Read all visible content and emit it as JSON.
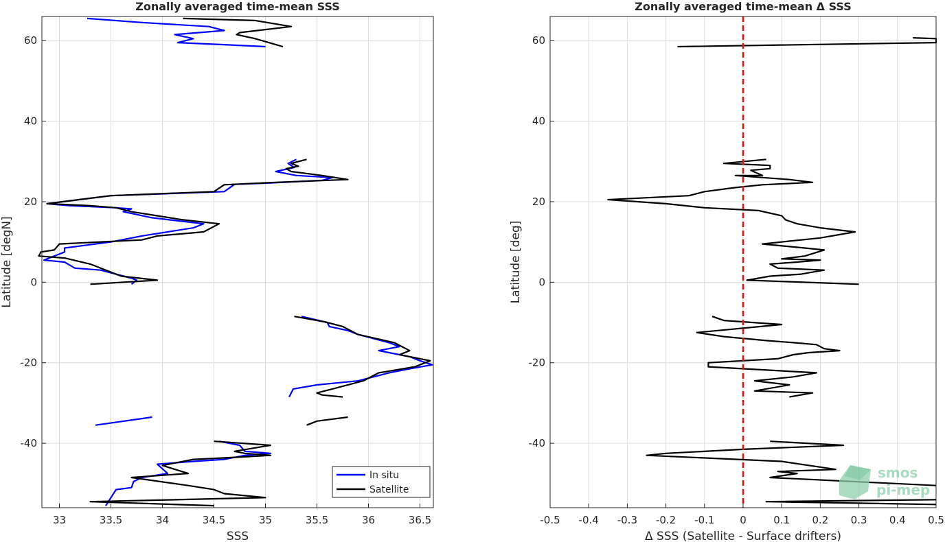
{
  "chart_data": [
    {
      "type": "line",
      "title": "Zonally averaged time-mean SSS",
      "xlabel": "SSS",
      "ylabel": "Latitude [degN]",
      "xlim": [
        32.83,
        36.63
      ],
      "ylim": [
        -56,
        66
      ],
      "xticks": [
        33,
        33.5,
        34,
        34.5,
        35,
        35.5,
        36,
        36.5
      ],
      "yticks": [
        -40,
        -20,
        0,
        20,
        40,
        60
      ],
      "grid": true,
      "legend": "bottom-right",
      "series": [
        {
          "name": "In situ",
          "color": "#0000ff",
          "segments": [
            [
              [
                33.27,
                65.5
              ],
              [
                33.8,
                64.5
              ],
              [
                34.45,
                63.5
              ],
              [
                34.6,
                62.5
              ],
              [
                34.12,
                61.5
              ],
              [
                34.3,
                60.5
              ],
              [
                34.15,
                59.5
              ],
              [
                34.6,
                59.0
              ],
              [
                35.0,
                58.5
              ]
            ],
            [
              [
                35.3,
                30.5
              ],
              [
                35.22,
                29.5
              ],
              [
                35.28,
                28.5
              ],
              [
                35.1,
                27.5
              ],
              [
                35.3,
                26.5
              ],
              [
                35.65,
                26.0
              ],
              [
                35.55,
                25.3
              ],
              [
                35.0,
                24.6
              ],
              [
                34.7,
                24.3
              ],
              [
                34.6,
                22.5
              ],
              [
                33.5,
                21.5
              ],
              [
                32.88,
                19.5
              ],
              [
                33.1,
                19.0
              ],
              [
                33.55,
                18.5
              ],
              [
                33.7,
                18.2
              ],
              [
                33.62,
                17.5
              ],
              [
                33.9,
                16.0
              ],
              [
                34.4,
                14.5
              ],
              [
                34.3,
                13.5
              ],
              [
                33.8,
                11.5
              ],
              [
                33.5,
                10.0
              ],
              [
                33.05,
                8.5
              ],
              [
                33.05,
                7.5
              ],
              [
                32.85,
                5.5
              ],
              [
                33.05,
                5.0
              ],
              [
                33.15,
                3.5
              ],
              [
                33.4,
                3.0
              ],
              [
                33.7,
                1.0
              ],
              [
                33.75,
                0.5
              ],
              [
                33.7,
                -0.5
              ]
            ],
            [
              [
                35.35,
                -8.5
              ],
              [
                35.6,
                -10.0
              ],
              [
                35.62,
                -11.0
              ],
              [
                35.8,
                -12.0
              ],
              [
                35.9,
                -13.0
              ],
              [
                36.2,
                -15.0
              ],
              [
                36.3,
                -16.0
              ],
              [
                36.1,
                -17.0
              ],
              [
                36.2,
                -17.5
              ],
              [
                36.4,
                -18.5
              ],
              [
                36.5,
                -19.5
              ],
              [
                36.62,
                -20.5
              ],
              [
                36.4,
                -21.5
              ],
              [
                36.2,
                -22.5
              ],
              [
                35.9,
                -24.5
              ],
              [
                35.5,
                -25.5
              ],
              [
                35.27,
                -26.5
              ],
              [
                35.25,
                -27.5
              ],
              [
                35.23,
                -28.5
              ]
            ],
            [
              [
                33.35,
                -35.5
              ],
              [
                33.9,
                -33.5
              ]
            ],
            [
              [
                34.55,
                -39.5
              ],
              [
                34.75,
                -40.5
              ],
              [
                34.8,
                -42.0
              ],
              [
                35.05,
                -42.5
              ],
              [
                34.8,
                -43.0
              ],
              [
                34.6,
                -44.0
              ],
              [
                34.3,
                -44.5
              ],
              [
                33.95,
                -45.2
              ],
              [
                34.05,
                -47.5
              ],
              [
                33.8,
                -48.5
              ],
              [
                33.72,
                -49.5
              ],
              [
                33.7,
                -51.0
              ],
              [
                33.55,
                -51.5
              ],
              [
                33.5,
                -53.5
              ],
              [
                33.45,
                -55.5
              ]
            ]
          ]
        },
        {
          "name": "Satellite",
          "color": "#000000",
          "segments": [
            [
              [
                34.2,
                65.5
              ],
              [
                34.9,
                65.0
              ],
              [
                35.25,
                63.5
              ],
              [
                34.75,
                62.0
              ],
              [
                34.72,
                61.5
              ],
              [
                34.9,
                60.5
              ],
              [
                35.17,
                58.5
              ]
            ],
            [
              [
                35.4,
                30.5
              ],
              [
                35.25,
                29.5
              ],
              [
                35.32,
                28.8
              ],
              [
                35.2,
                28.2
              ],
              [
                35.25,
                27.5
              ],
              [
                35.55,
                26.5
              ],
              [
                35.8,
                25.5
              ],
              [
                35.1,
                24.8
              ],
              [
                34.6,
                24.2
              ],
              [
                34.5,
                22.5
              ],
              [
                33.5,
                21.5
              ],
              [
                32.88,
                19.5
              ],
              [
                33.3,
                19.0
              ],
              [
                33.55,
                18.5
              ],
              [
                33.7,
                17.5
              ],
              [
                33.95,
                16.5
              ],
              [
                34.2,
                15.5
              ],
              [
                34.55,
                14.5
              ],
              [
                34.4,
                12.5
              ],
              [
                33.95,
                11.5
              ],
              [
                33.8,
                10.5
              ],
              [
                33.0,
                9.5
              ],
              [
                32.95,
                8.0
              ],
              [
                32.82,
                7.5
              ],
              [
                32.8,
                6.5
              ],
              [
                33.05,
                6.0
              ],
              [
                33.3,
                4.5
              ],
              [
                33.5,
                2.5
              ],
              [
                33.6,
                1.5
              ],
              [
                33.95,
                0.5
              ],
              [
                33.3,
                -0.5
              ]
            ],
            [
              [
                35.28,
                -8.5
              ],
              [
                35.5,
                -9.5
              ],
              [
                35.6,
                -10.0
              ],
              [
                35.75,
                -11.0
              ],
              [
                35.9,
                -13.0
              ],
              [
                36.25,
                -15.0
              ],
              [
                36.4,
                -17.0
              ],
              [
                36.3,
                -18.0
              ],
              [
                36.6,
                -19.5
              ],
              [
                36.45,
                -21.0
              ],
              [
                36.1,
                -22.5
              ],
              [
                35.95,
                -24.5
              ],
              [
                35.65,
                -26.5
              ],
              [
                35.5,
                -27.5
              ],
              [
                35.55,
                -28.0
              ],
              [
                35.75,
                -28.5
              ]
            ],
            [
              [
                35.4,
                -35.5
              ],
              [
                35.5,
                -34.5
              ],
              [
                35.8,
                -33.5
              ]
            ],
            [
              [
                34.5,
                -39.5
              ],
              [
                35.05,
                -40.5
              ],
              [
                34.7,
                -42.0
              ],
              [
                34.8,
                -42.5
              ],
              [
                35.05,
                -43.0
              ],
              [
                34.7,
                -43.5
              ],
              [
                34.3,
                -44.0
              ],
              [
                34.0,
                -45.5
              ],
              [
                34.25,
                -47.5
              ],
              [
                33.7,
                -48.5
              ],
              [
                34.25,
                -50.5
              ],
              [
                34.5,
                -51.5
              ],
              [
                34.6,
                -52.5
              ],
              [
                35.0,
                -53.5
              ],
              [
                33.3,
                -54.5
              ],
              [
                34.5,
                -55.5
              ]
            ]
          ]
        }
      ]
    },
    {
      "type": "line",
      "title": "Zonally averaged time-mean Δ SSS",
      "xlabel": "Δ SSS (Satellite - Surface drifters)",
      "ylabel": "Latitude [deg]",
      "xlim": [
        -0.5,
        0.5
      ],
      "ylim": [
        -56,
        66
      ],
      "xticks": [
        -0.5,
        -0.4,
        -0.3,
        -0.2,
        -0.1,
        0,
        0.1,
        0.2,
        0.3,
        0.4,
        0.5
      ],
      "yticks": [
        -40,
        -20,
        0,
        20,
        40,
        60
      ],
      "grid": true,
      "zero_line": {
        "x": 0,
        "color": "#ee1111",
        "style": "dashed"
      },
      "series": [
        {
          "name": "",
          "color": "#000000",
          "segments": [
            [
              [
                0.44,
                60.7
              ],
              [
                0.5,
                60.5
              ],
              [
                0.5,
                59.5
              ],
              [
                -0.17,
                58.5
              ]
            ],
            [
              [
                0.06,
                30.5
              ],
              [
                -0.05,
                29.5
              ],
              [
                0.07,
                29.0
              ],
              [
                0.07,
                28.2
              ],
              [
                0.02,
                27.8
              ],
              [
                0.05,
                26.5
              ],
              [
                -0.02,
                26.5
              ],
              [
                0.12,
                25.5
              ],
              [
                0.18,
                24.8
              ],
              [
                0.05,
                24.2
              ],
              [
                -0.02,
                23.5
              ],
              [
                -0.1,
                22.5
              ],
              [
                -0.14,
                21.5
              ],
              [
                -0.35,
                20.5
              ],
              [
                -0.2,
                19.5
              ],
              [
                -0.1,
                18.5
              ],
              [
                0.04,
                17.8
              ],
              [
                0.1,
                16.5
              ],
              [
                0.11,
                15.5
              ],
              [
                0.14,
                14.5
              ],
              [
                0.2,
                13.5
              ],
              [
                0.29,
                12.5
              ],
              [
                0.2,
                11.0
              ],
              [
                0.05,
                9.5
              ],
              [
                0.16,
                8.5
              ],
              [
                0.21,
                8.0
              ],
              [
                0.16,
                6.5
              ],
              [
                0.1,
                5.8
              ],
              [
                0.2,
                5.5
              ],
              [
                0.14,
                5.0
              ],
              [
                0.07,
                4.5
              ],
              [
                0.09,
                3.5
              ],
              [
                0.21,
                3.0
              ],
              [
                0.15,
                2.0
              ],
              [
                0.07,
                1.5
              ],
              [
                0.01,
                0.5
              ],
              [
                0.3,
                -0.5
              ]
            ],
            [
              [
                -0.08,
                -8.5
              ],
              [
                -0.05,
                -9.5
              ],
              [
                0.1,
                -10.5
              ],
              [
                -0.12,
                -12.5
              ],
              [
                -0.05,
                -13.5
              ],
              [
                0.06,
                -14.5
              ],
              [
                0.13,
                -15.0
              ],
              [
                0.19,
                -15.5
              ],
              [
                0.21,
                -16.5
              ],
              [
                0.25,
                -17.0
              ],
              [
                0.17,
                -17.5
              ],
              [
                0.13,
                -18.0
              ],
              [
                0.09,
                -19.0
              ],
              [
                -0.09,
                -20.0
              ],
              [
                -0.09,
                -21.0
              ],
              [
                0.19,
                -22.5
              ],
              [
                0.13,
                -23.5
              ],
              [
                0.03,
                -24.5
              ],
              [
                0.12,
                -25.5
              ],
              [
                0.03,
                -27.0
              ],
              [
                0.18,
                -27.5
              ],
              [
                0.12,
                -28.5
              ]
            ],
            [
              [
                0.07,
                -39.5
              ],
              [
                0.26,
                -40.5
              ],
              [
                0.0,
                -41.5
              ],
              [
                -0.2,
                -42.5
              ],
              [
                -0.25,
                -43.0
              ],
              [
                0.1,
                -44.5
              ],
              [
                0.24,
                -46.5
              ],
              [
                0.09,
                -47.0
              ],
              [
                0.14,
                -47.5
              ],
              [
                0.07,
                -48.5
              ],
              [
                0.5,
                -50.5
              ]
            ],
            [
              [
                0.5,
                -54.0
              ],
              [
                0.06,
                -54.5
              ],
              [
                0.5,
                -55.2
              ]
            ]
          ]
        }
      ]
    }
  ],
  "legend": {
    "items": [
      {
        "label": "In situ",
        "color": "#0000ff"
      },
      {
        "label": "Satellite",
        "color": "#000000"
      }
    ]
  },
  "watermark": {
    "line1": "smos",
    "line2": "pi-mep",
    "color": "#7fbf9f"
  }
}
